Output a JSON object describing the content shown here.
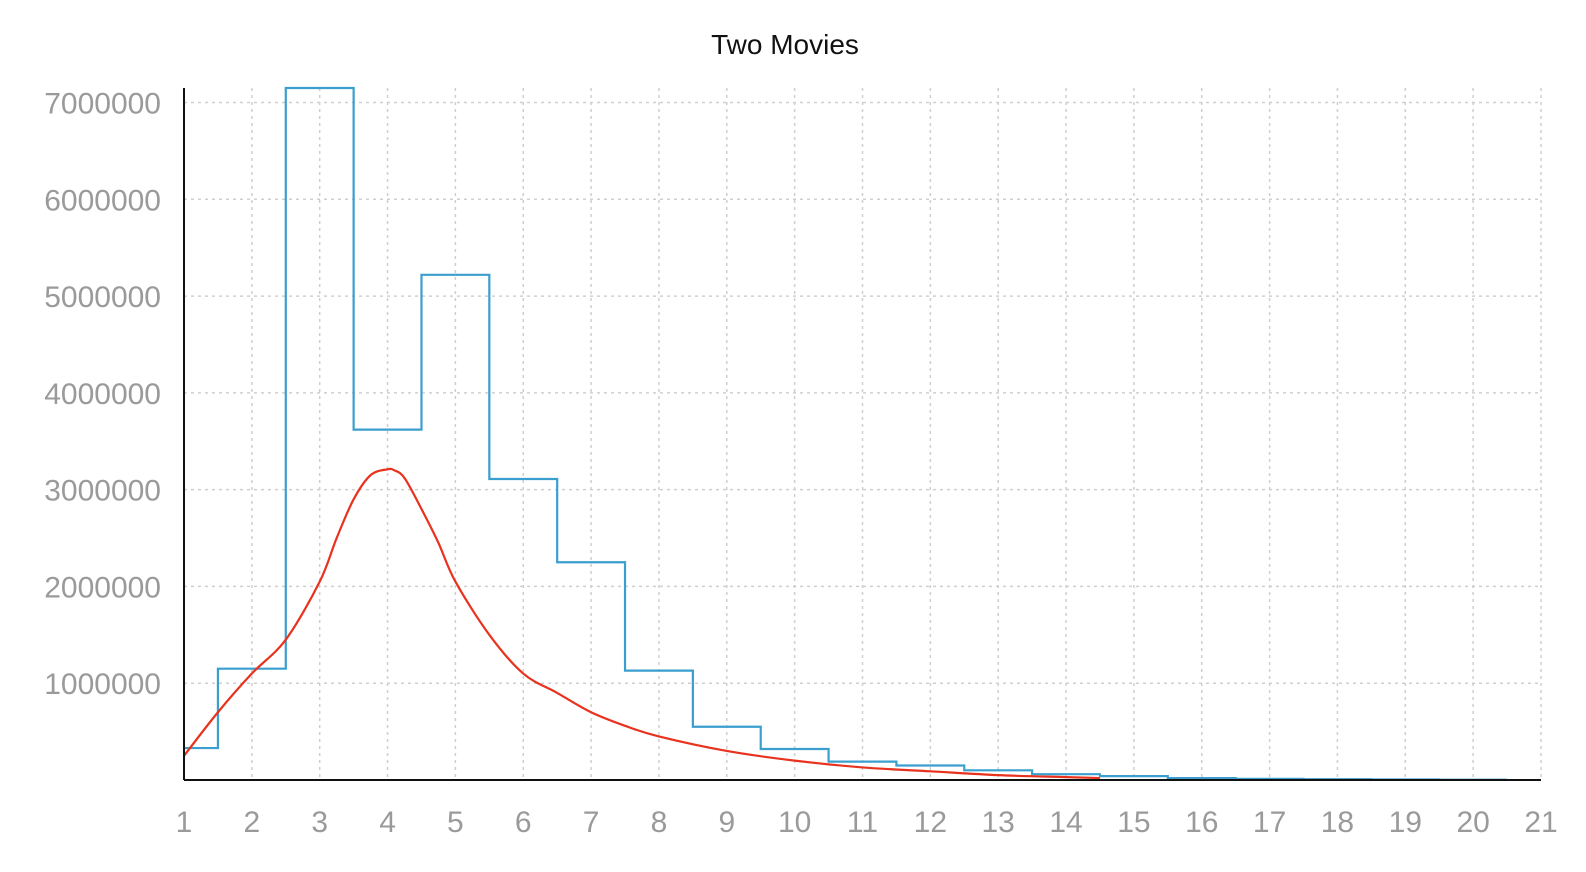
{
  "chart_data": {
    "type": "line",
    "title": "Two Movies",
    "xlabel": "",
    "ylabel": "",
    "xlim": [
      1,
      21
    ],
    "ylim": [
      0,
      7150000
    ],
    "x_ticks": [
      1,
      2,
      3,
      4,
      5,
      6,
      7,
      8,
      9,
      10,
      11,
      12,
      13,
      14,
      15,
      16,
      17,
      18,
      19,
      20,
      21
    ],
    "y_ticks": [
      1000000,
      2000000,
      3000000,
      4000000,
      5000000,
      6000000,
      7000000
    ],
    "grid": true,
    "legend": "none",
    "series": [
      {
        "style": "step-histogram",
        "color": "#3a9fcf",
        "bin_width": 1,
        "x": [
          1,
          2,
          3,
          4,
          5,
          6,
          7,
          8,
          9,
          10,
          11,
          12,
          13,
          14,
          15,
          16,
          17,
          18,
          19,
          20
        ],
        "values": [
          330000,
          1150000,
          7150000,
          3620000,
          5220000,
          3110000,
          2250000,
          1130000,
          550000,
          320000,
          190000,
          150000,
          100000,
          60000,
          40000,
          20000,
          12000,
          8000,
          5000,
          3000
        ]
      },
      {
        "style": "smooth-line",
        "color": "#e8321e",
        "x": [
          1.0,
          1.5,
          2.0,
          2.5,
          3.0,
          3.25,
          3.5,
          3.75,
          4.0,
          4.1,
          4.25,
          4.5,
          4.75,
          5.0,
          5.5,
          6.0,
          6.5,
          7.0,
          7.5,
          8.0,
          9.0,
          10.0,
          11.0,
          12.0,
          13.0,
          14.0,
          14.5
        ],
        "values": [
          250000,
          700000,
          1100000,
          1450000,
          2050000,
          2500000,
          2900000,
          3150000,
          3210000,
          3200000,
          3120000,
          2800000,
          2450000,
          2050000,
          1500000,
          1100000,
          900000,
          700000,
          560000,
          450000,
          300000,
          200000,
          130000,
          90000,
          50000,
          30000,
          20000
        ]
      }
    ]
  }
}
